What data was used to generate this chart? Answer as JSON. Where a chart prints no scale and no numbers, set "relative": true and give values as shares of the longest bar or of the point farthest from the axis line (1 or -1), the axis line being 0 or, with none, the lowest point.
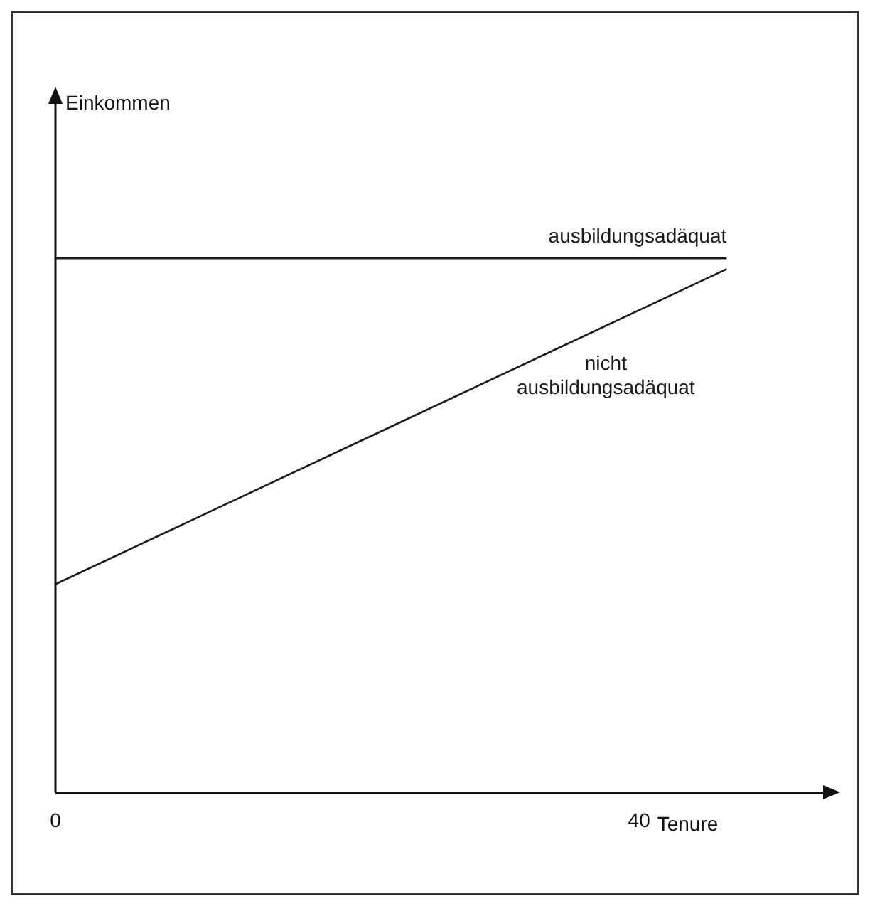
{
  "chart_data": {
    "type": "line",
    "relative": true,
    "xlabel": "Tenure",
    "annotations": [
      "Einkommen"
    ],
    "xlim": [
      0,
      53
    ],
    "xticks": [
      0,
      40
    ],
    "tick_labels": "x",
    "grid": false,
    "legend": false,
    "marker": "none",
    "line_style": "solid",
    "x": [
      0,
      46
    ],
    "series": [
      {
        "name": "ausbildungsadäquat",
        "color": "#1a1a1a",
        "values": [
          1,
          1
        ]
      },
      {
        "name": "nicht ausbildungsadäquat",
        "color": "#1a1a1a",
        "values": [
          0.39,
          0.98
        ]
      }
    ]
  }
}
